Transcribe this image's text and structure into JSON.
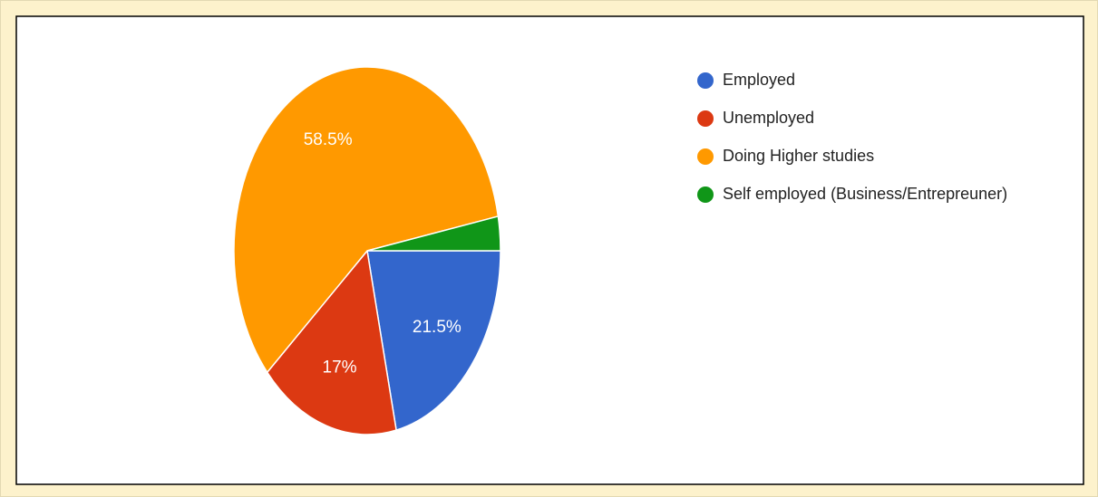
{
  "chart_data": {
    "type": "pie",
    "categories": [
      "Employed",
      "Unemployed",
      "Doing Higher studies",
      "Self employed (Business/Entrepreuner)"
    ],
    "values": [
      21.5,
      17,
      58.5,
      3
    ],
    "value_labels": [
      "21.5%",
      "17%",
      "58.5%",
      null
    ],
    "colors": [
      "#3366cc",
      "#dc3912",
      "#ff9900",
      "#109618"
    ],
    "legend": "right"
  }
}
